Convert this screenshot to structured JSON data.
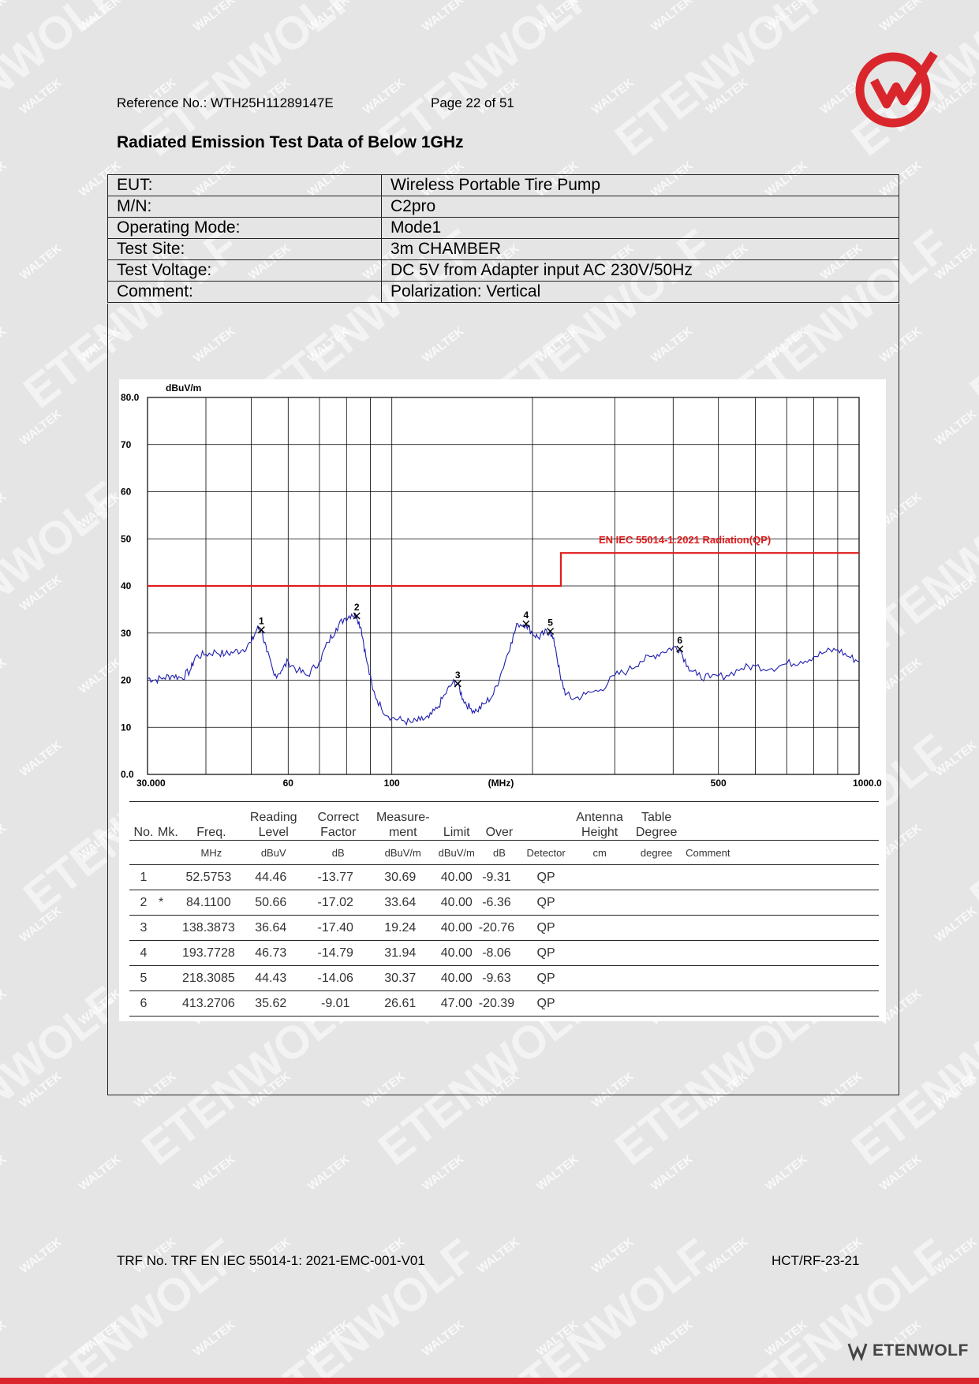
{
  "header": {
    "reference": "Reference No.: WTH25H11289147E",
    "page": "Page 22 of 51"
  },
  "title": "Radiated Emission Test Data of Below 1GHz",
  "info": [
    {
      "label": "EUT:",
      "value": "Wireless Portable Tire Pump"
    },
    {
      "label": "M/N:",
      "value": "C2pro"
    },
    {
      "label": "Operating Mode:",
      "value": "Mode1"
    },
    {
      "label": "Test Site:",
      "value": "3m CHAMBER"
    },
    {
      "label": "Test Voltage:",
      "value": "DC 5V from Adapter input AC 230V/50Hz"
    },
    {
      "label": "Comment:",
      "value": "Polarization: Vertical"
    }
  ],
  "chart_data": {
    "type": "line",
    "ylabel": "dBuV/m",
    "xlabel": "(MHz)",
    "x_scale": "log",
    "xlim": [
      30,
      1000
    ],
    "ylim": [
      0,
      80
    ],
    "y_ticks": [
      "80.0",
      "70",
      "60",
      "50",
      "40",
      "30",
      "20",
      "10",
      "0.0"
    ],
    "x_ticks": [
      {
        "value": 30,
        "label": "30.000"
      },
      {
        "value": 60,
        "label": "60"
      },
      {
        "value": 100,
        "label": "100"
      },
      {
        "value": 500,
        "label": "500"
      },
      {
        "value": 1000,
        "label": "1000.0"
      }
    ],
    "limit_label": "EN IEC 55014-1:2021 Radiation(QP)",
    "limit": [
      {
        "x": 30,
        "y": 40
      },
      {
        "x": 230,
        "y": 40
      },
      {
        "x": 230,
        "y": 47
      },
      {
        "x": 1000,
        "y": 47
      }
    ],
    "series": [
      {
        "x": [
          30,
          31,
          32.5,
          34,
          35.5,
          37,
          38,
          40,
          42,
          44,
          46,
          48,
          50,
          51.5,
          52.6,
          54,
          56,
          58,
          60,
          63,
          66,
          70,
          73,
          76,
          79,
          82,
          84.1,
          86,
          88,
          91,
          95,
          100,
          105,
          110,
          115,
          120,
          125,
          130,
          135,
          138.4,
          142,
          147,
          152,
          158,
          165,
          172,
          180,
          186,
          193.8,
          200,
          206,
          212,
          218.3,
          224,
          230,
          236,
          245,
          260,
          280,
          300,
          320,
          340,
          360,
          380,
          400,
          413.3,
          430,
          450,
          480,
          520,
          560,
          600,
          650,
          700,
          750,
          800,
          850,
          900,
          950,
          1000
        ],
        "y": [
          20.5,
          20,
          20.5,
          21,
          20.5,
          22,
          25,
          25.5,
          26,
          25.5,
          26,
          26.5,
          28,
          31,
          30.7,
          26,
          21,
          22,
          24,
          22,
          21,
          24,
          28,
          31,
          33,
          34,
          33.6,
          31,
          25,
          18,
          14,
          12,
          11.5,
          11,
          11.5,
          12,
          14,
          17,
          19.5,
          19.2,
          16,
          14,
          13.5,
          15,
          17,
          22,
          28,
          32,
          31.9,
          30,
          29,
          30,
          30.4,
          27,
          20,
          17,
          16,
          17,
          18,
          21,
          22,
          24,
          25,
          26,
          27,
          26.6,
          23,
          21,
          20.5,
          21,
          22.5,
          23,
          22.5,
          23.5,
          24,
          25,
          26,
          26.5,
          25,
          24
        ]
      }
    ],
    "markers": [
      {
        "label": "1",
        "x": 52.5753,
        "y": 30.69
      },
      {
        "label": "2",
        "x": 84.11,
        "y": 33.64
      },
      {
        "label": "3",
        "x": 138.3873,
        "y": 19.24
      },
      {
        "label": "4",
        "x": 193.7728,
        "y": 31.94
      },
      {
        "label": "5",
        "x": 218.3085,
        "y": 30.37
      },
      {
        "label": "6",
        "x": 413.2706,
        "y": 26.61
      }
    ]
  },
  "results": {
    "headers": {
      "no": "No.",
      "mk": "Mk.",
      "freq": "Freq.",
      "reading_1": "Reading",
      "reading_2": "Level",
      "correct_1": "Correct",
      "correct_2": "Factor",
      "measure_1": "Measure-",
      "measure_2": "ment",
      "limit": "Limit",
      "over": "Over",
      "antenna_1": "Antenna",
      "antenna_2": "Height",
      "table_1": "Table",
      "table_2": "Degree"
    },
    "units": {
      "freq": "MHz",
      "reading": "dBuV",
      "correct": "dB",
      "measure": "dBuV/m",
      "limit": "dBuV/m",
      "over": "dB",
      "detector": "Detector",
      "antenna": "cm",
      "table": "degree",
      "comment": "Comment"
    },
    "rows": [
      {
        "no": "1",
        "mk": "",
        "freq": "52.5753",
        "reading": "44.46",
        "correct": "-13.77",
        "measure": "30.69",
        "limit": "40.00",
        "over": "-9.31",
        "detector": "QP"
      },
      {
        "no": "2",
        "mk": "*",
        "freq": "84.1100",
        "reading": "50.66",
        "correct": "-17.02",
        "measure": "33.64",
        "limit": "40.00",
        "over": "-6.36",
        "detector": "QP"
      },
      {
        "no": "3",
        "mk": "",
        "freq": "138.3873",
        "reading": "36.64",
        "correct": "-17.40",
        "measure": "19.24",
        "limit": "40.00",
        "over": "-20.76",
        "detector": "QP"
      },
      {
        "no": "4",
        "mk": "",
        "freq": "193.7728",
        "reading": "46.73",
        "correct": "-14.79",
        "measure": "31.94",
        "limit": "40.00",
        "over": "-8.06",
        "detector": "QP"
      },
      {
        "no": "5",
        "mk": "",
        "freq": "218.3085",
        "reading": "44.43",
        "correct": "-14.06",
        "measure": "30.37",
        "limit": "40.00",
        "over": "-9.63",
        "detector": "QP"
      },
      {
        "no": "6",
        "mk": "",
        "freq": "413.2706",
        "reading": "35.62",
        "correct": "-9.01",
        "measure": "26.61",
        "limit": "47.00",
        "over": "-20.39",
        "detector": "QP"
      }
    ]
  },
  "footer": {
    "trf": "TRF No. TRF EN IEC 55014-1: 2021-EMC-001-V01",
    "code": "HCT/RF-23-21",
    "brand": "ETENWOLF"
  },
  "watermark": {
    "text_a": "WALTEK",
    "text_b": "ETENWOLF"
  },
  "colors": {
    "accent": "#d9262c",
    "trace": "#1f1fb0",
    "limit": "#e01b1b"
  }
}
